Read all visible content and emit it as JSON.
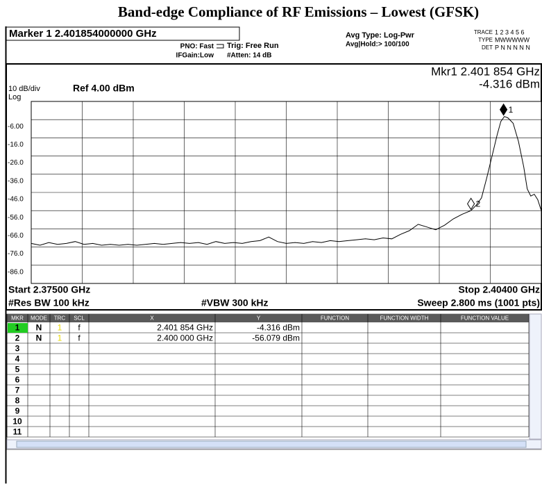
{
  "title": "Band-edge Compliance of RF Emissions – Lowest (GFSK)",
  "header": {
    "marker": "Marker 1 2.401854000000 GHz",
    "pno": "PNO: Fast",
    "ifgain": "IFGain:Low",
    "trig": "Trig: Free Run",
    "atten": "#Atten: 14 dB",
    "avg_type": "Avg Type: Log-Pwr",
    "avg_hold": "Avg|Hold:> 100/100",
    "trace_label": "TRACE",
    "trace_nums": "1 2 3 4 5 6",
    "type_label": "TYPE",
    "type_vals": "MWWWWW",
    "det_label": "DET",
    "det_vals": "P N N N N N"
  },
  "display": {
    "mkr_freq": "Mkr1 2.401 854 GHz",
    "mkr_level": "-4.316 dBm",
    "scale": "10 dB/div",
    "ref": "Ref 4.00 dBm",
    "log": "Log",
    "start": "Start 2.37500 GHz",
    "stop": "Stop 2.40400 GHz",
    "rbw": "#Res BW 100 kHz",
    "vbw": "#VBW 300 kHz",
    "sweep": "Sweep  2.800 ms (1001 pts)"
  },
  "chart_data": {
    "type": "line",
    "color": "#000000",
    "x": [
      2.375,
      2.3755,
      2.376,
      2.3765,
      2.377,
      2.3775,
      2.378,
      2.3785,
      2.379,
      2.3795,
      2.38,
      2.3805,
      2.381,
      2.3815,
      2.382,
      2.3825,
      2.383,
      2.3835,
      2.384,
      2.3845,
      2.385,
      2.3855,
      2.386,
      2.3865,
      2.387,
      2.3875,
      2.388,
      2.3885,
      2.389,
      2.3895,
      2.39,
      2.3905,
      2.391,
      2.3915,
      2.392,
      2.3925,
      2.393,
      2.3935,
      2.394,
      2.3945,
      2.395,
      2.3955,
      2.396,
      2.3965,
      2.397,
      2.3975,
      2.398,
      2.3985,
      2.399,
      2.3995,
      2.4,
      2.4003,
      2.4006,
      2.4009,
      2.4012,
      2.4015,
      2.4017,
      2.4019,
      2.4021,
      2.4024,
      2.4027,
      2.403,
      2.4032,
      2.4034,
      2.4036,
      2.4038,
      2.404
    ],
    "values": [
      -74,
      -75,
      -73.5,
      -74.5,
      -74,
      -73,
      -74.5,
      -74,
      -75,
      -74.5,
      -75,
      -74.5,
      -75,
      -74.5,
      -74,
      -74.5,
      -74,
      -73.5,
      -74,
      -73.5,
      -74.5,
      -73,
      -74,
      -73.5,
      -74,
      -73,
      -72.5,
      -70.5,
      -73,
      -74,
      -73.5,
      -74,
      -73,
      -73.5,
      -72.5,
      -73,
      -72.5,
      -72,
      -71.5,
      -72,
      -71,
      -71.5,
      -69,
      -67,
      -63.5,
      -65,
      -66.5,
      -64,
      -60.5,
      -58,
      -56,
      -53,
      -49,
      -38,
      -26,
      -14,
      -7,
      -4.3,
      -5,
      -8,
      -18,
      -32,
      -44,
      -48,
      -47,
      -50,
      -56
    ],
    "xlim": [
      2.375,
      2.404
    ],
    "ylim": [
      -96,
      4
    ],
    "yticks": [
      {
        "value": -6,
        "label": "-6.00"
      },
      {
        "value": -16,
        "label": "-16.0"
      },
      {
        "value": -26,
        "label": "-26.0"
      },
      {
        "value": -36,
        "label": "-36.0"
      },
      {
        "value": -46,
        "label": "-46.0"
      },
      {
        "value": -56,
        "label": "-56.0"
      },
      {
        "value": -66,
        "label": "-66.0"
      },
      {
        "value": -76,
        "label": "-76.0"
      },
      {
        "value": -86,
        "label": "-86.0"
      }
    ],
    "grid": true,
    "markers": [
      {
        "label": "1",
        "x": 2.401854,
        "y": -4.316
      },
      {
        "label": "2",
        "x": 2.4,
        "y": -56.079
      }
    ]
  },
  "table": {
    "columns": [
      "MKR",
      "MODE",
      "TRC",
      "SCL",
      "X",
      "Y",
      "FUNCTION",
      "FUNCTION WIDTH",
      "FUNCTION VALUE"
    ],
    "rows": [
      [
        "1",
        "N",
        "1",
        "f",
        "2.401 854 GHz",
        "-4.316 dBm"
      ],
      [
        "2",
        "N",
        "1",
        "f",
        "2.400 000 GHz",
        "-56.079 dBm"
      ],
      [
        "3"
      ],
      [
        "4"
      ],
      [
        "5"
      ],
      [
        "6"
      ],
      [
        "7"
      ],
      [
        "8"
      ],
      [
        "9"
      ],
      [
        "10"
      ],
      [
        "11"
      ]
    ]
  }
}
